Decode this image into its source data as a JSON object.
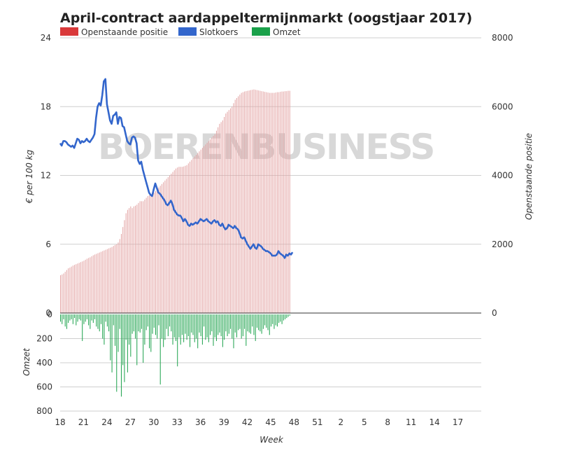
{
  "chart_data": {
    "type": "bar",
    "title": "April-contract aardappeltermijnmarkt (oogstjaar 2017)",
    "watermark": "BOERENBUSINESS",
    "legend": [
      {
        "name": "Openstaande positie",
        "color": "#d9393a"
      },
      {
        "name": "Slotkoers",
        "color": "#3366cc"
      },
      {
        "name": "Omzet",
        "color": "#1aa14a"
      }
    ],
    "xlabel": "Week",
    "ylabel_left": "€ per 100 kg",
    "ylabel_right": "Openstaande positie",
    "ylabel_volume": "Omzet",
    "x_ticks": [
      "18",
      "21",
      "24",
      "27",
      "30",
      "33",
      "36",
      "39",
      "42",
      "45",
      "48",
      "51",
      "2",
      "5",
      "8",
      "11",
      "14",
      "17"
    ],
    "y_left_ticks": [
      "24",
      "18",
      "12",
      "6",
      "0"
    ],
    "y_right_ticks": [
      "8000",
      "6000",
      "4000",
      "2000",
      "0"
    ],
    "y_volume_ticks": [
      "0",
      "200",
      "400",
      "600",
      "800"
    ],
    "y_left_range": [
      0,
      24
    ],
    "y_right_range": [
      0,
      8000
    ],
    "y_volume_range": [
      0,
      800
    ],
    "x_range_weeks": [
      0,
      54
    ],
    "series": [
      {
        "name": "Openstaande positie",
        "axis": "right",
        "x_step_weeks": 0.2,
        "values": [
          1100,
          1120,
          1150,
          1200,
          1250,
          1300,
          1320,
          1350,
          1380,
          1400,
          1420,
          1440,
          1460,
          1480,
          1500,
          1520,
          1550,
          1580,
          1600,
          1620,
          1650,
          1680,
          1700,
          1720,
          1740,
          1760,
          1780,
          1800,
          1820,
          1840,
          1860,
          1880,
          1900,
          1920,
          1950,
          1980,
          2000,
          2050,
          2150,
          2300,
          2500,
          2700,
          2900,
          3000,
          3050,
          3100,
          3050,
          3100,
          3120,
          3150,
          3200,
          3250,
          3250,
          3250,
          3300,
          3350,
          3400,
          3420,
          3450,
          3480,
          3500,
          3550,
          3600,
          3650,
          3700,
          3750,
          3800,
          3850,
          3900,
          3950,
          4000,
          4050,
          4100,
          4150,
          4200,
          4230,
          4250,
          4250,
          4250,
          4260,
          4280,
          4300,
          4350,
          4400,
          4450,
          4500,
          4550,
          4600,
          4650,
          4700,
          4750,
          4800,
          4850,
          4900,
          4950,
          5000,
          5050,
          5100,
          5150,
          5200,
          5300,
          5400,
          5500,
          5550,
          5600,
          5700,
          5800,
          5850,
          5900,
          5950,
          6000,
          6100,
          6200,
          6250,
          6300,
          6350,
          6400,
          6420,
          6440,
          6450,
          6460,
          6470,
          6480,
          6490,
          6500,
          6490,
          6480,
          6470,
          6460,
          6450,
          6440,
          6430,
          6420,
          6410,
          6400,
          6400,
          6400,
          6400,
          6410,
          6420,
          6420,
          6430,
          6440,
          6440,
          6450,
          6450,
          6460,
          6460
        ]
      },
      {
        "name": "Slotkoers",
        "axis": "left",
        "x_step_weeks": 0.2,
        "values": [
          14.8,
          14.6,
          15.0,
          15.0,
          14.9,
          14.7,
          14.6,
          14.5,
          14.6,
          14.4,
          14.8,
          15.2,
          15.1,
          14.8,
          15.0,
          14.9,
          15.0,
          15.2,
          15.0,
          14.9,
          15.1,
          15.3,
          15.6,
          17.0,
          18.0,
          18.3,
          18.1,
          19.0,
          20.2,
          20.4,
          18.2,
          17.5,
          16.8,
          16.5,
          17.2,
          17.3,
          17.5,
          16.5,
          17.1,
          17.0,
          16.3,
          16.2,
          15.6,
          15.0,
          14.8,
          14.7,
          15.3,
          15.4,
          15.3,
          14.8,
          13.3,
          13.0,
          13.2,
          12.5,
          12.0,
          11.5,
          11.0,
          10.5,
          10.3,
          10.2,
          10.8,
          11.3,
          10.9,
          10.5,
          10.4,
          10.2,
          10.0,
          9.8,
          9.5,
          9.4,
          9.6,
          9.8,
          9.5,
          9.0,
          8.8,
          8.6,
          8.5,
          8.5,
          8.3,
          8.0,
          8.2,
          8.0,
          7.7,
          7.6,
          7.8,
          7.7,
          7.8,
          7.9,
          7.8,
          8.0,
          8.2,
          8.1,
          8.0,
          8.1,
          8.2,
          8.0,
          7.9,
          7.8,
          8.0,
          8.1,
          7.9,
          8.0,
          7.7,
          7.6,
          7.8,
          7.5,
          7.3,
          7.4,
          7.7,
          7.6,
          7.5,
          7.4,
          7.6,
          7.4,
          7.3,
          7.0,
          6.6,
          6.5,
          6.6,
          6.3,
          6.0,
          5.8,
          5.6,
          5.8,
          6.0,
          5.7,
          5.6,
          6.0,
          5.9,
          5.8,
          5.6,
          5.5,
          5.4,
          5.4,
          5.3,
          5.2,
          5.0,
          5.0,
          5.0,
          5.1,
          5.4,
          5.2,
          5.1,
          5.0,
          4.8,
          5.1,
          5.0,
          5.2,
          5.1,
          5.3
        ]
      },
      {
        "name": "Omzet",
        "axis": "volume",
        "x_step_weeks": 0.2,
        "values": [
          60,
          80,
          40,
          100,
          120,
          70,
          50,
          40,
          80,
          30,
          90,
          60,
          40,
          50,
          220,
          80,
          60,
          40,
          90,
          120,
          50,
          70,
          40,
          100,
          120,
          140,
          80,
          200,
          250,
          60,
          100,
          140,
          380,
          480,
          90,
          260,
          640,
          310,
          120,
          680,
          420,
          560,
          210,
          480,
          250,
          350,
          160,
          140,
          200,
          420,
          140,
          150,
          120,
          400,
          250,
          130,
          100,
          280,
          310,
          160,
          110,
          170,
          200,
          90,
          580,
          200,
          270,
          210,
          120,
          180,
          100,
          140,
          250,
          190,
          220,
          430,
          190,
          250,
          170,
          230,
          160,
          210,
          180,
          270,
          150,
          170,
          230,
          200,
          280,
          150,
          180,
          250,
          100,
          210,
          190,
          230,
          170,
          140,
          260,
          190,
          220,
          170,
          150,
          180,
          270,
          210,
          140,
          180,
          160,
          120,
          200,
          280,
          150,
          190,
          130,
          120,
          200,
          180,
          120,
          260,
          140,
          150,
          160,
          100,
          170,
          220,
          110,
          130,
          140,
          160,
          120,
          90,
          110,
          130,
          170,
          100,
          80,
          120,
          90,
          100,
          70,
          60,
          80,
          50,
          40,
          30,
          20,
          10
        ]
      }
    ]
  }
}
